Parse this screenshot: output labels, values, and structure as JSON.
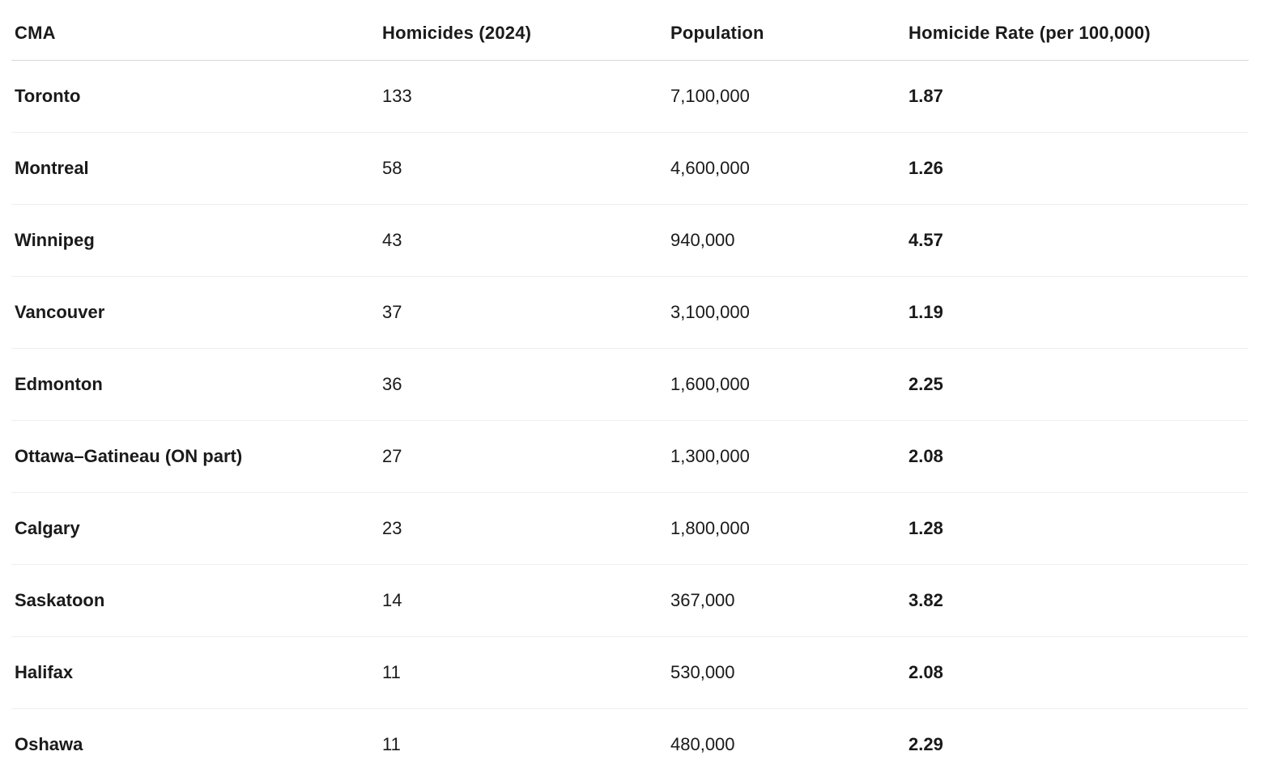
{
  "colors": {
    "background": "#ffffff",
    "text": "#1a1a1a",
    "header_divider": "#d8d8d8",
    "row_divider": "#efefef"
  },
  "table": {
    "columns": [
      {
        "key": "cma",
        "label": "CMA"
      },
      {
        "key": "homicides",
        "label": "Homicides (2024)"
      },
      {
        "key": "population",
        "label": "Population"
      },
      {
        "key": "rate",
        "label": "Homicide Rate (per 100,000)"
      }
    ],
    "rows": [
      {
        "cma": "Toronto",
        "homicides": "133",
        "population": "7,100,000",
        "rate": "1.87"
      },
      {
        "cma": "Montreal",
        "homicides": "58",
        "population": "4,600,000",
        "rate": "1.26"
      },
      {
        "cma": "Winnipeg",
        "homicides": "43",
        "population": "940,000",
        "rate": "4.57"
      },
      {
        "cma": "Vancouver",
        "homicides": "37",
        "population": "3,100,000",
        "rate": "1.19"
      },
      {
        "cma": "Edmonton",
        "homicides": "36",
        "population": "1,600,000",
        "rate": "2.25"
      },
      {
        "cma": "Ottawa–Gatineau (ON part)",
        "homicides": "27",
        "population": "1,300,000",
        "rate": "2.08"
      },
      {
        "cma": "Calgary",
        "homicides": "23",
        "population": "1,800,000",
        "rate": "1.28"
      },
      {
        "cma": "Saskatoon",
        "homicides": "14",
        "population": "367,000",
        "rate": "3.82"
      },
      {
        "cma": "Halifax",
        "homicides": "11",
        "population": "530,000",
        "rate": "2.08"
      },
      {
        "cma": "Oshawa",
        "homicides": "11",
        "population": "480,000",
        "rate": "2.29"
      }
    ]
  },
  "chart_data": {
    "type": "table",
    "title": "",
    "columns": [
      "CMA",
      "Homicides (2024)",
      "Population",
      "Homicide Rate (per 100,000)"
    ],
    "rows": [
      [
        "Toronto",
        133,
        7100000,
        1.87
      ],
      [
        "Montreal",
        58,
        4600000,
        1.26
      ],
      [
        "Winnipeg",
        43,
        940000,
        4.57
      ],
      [
        "Vancouver",
        37,
        3100000,
        1.19
      ],
      [
        "Edmonton",
        36,
        1600000,
        2.25
      ],
      [
        "Ottawa–Gatineau (ON part)",
        27,
        1300000,
        2.08
      ],
      [
        "Calgary",
        23,
        1800000,
        1.28
      ],
      [
        "Saskatoon",
        14,
        367000,
        3.82
      ],
      [
        "Halifax",
        11,
        530000,
        2.08
      ],
      [
        "Oshawa",
        11,
        480000,
        2.29
      ]
    ]
  }
}
